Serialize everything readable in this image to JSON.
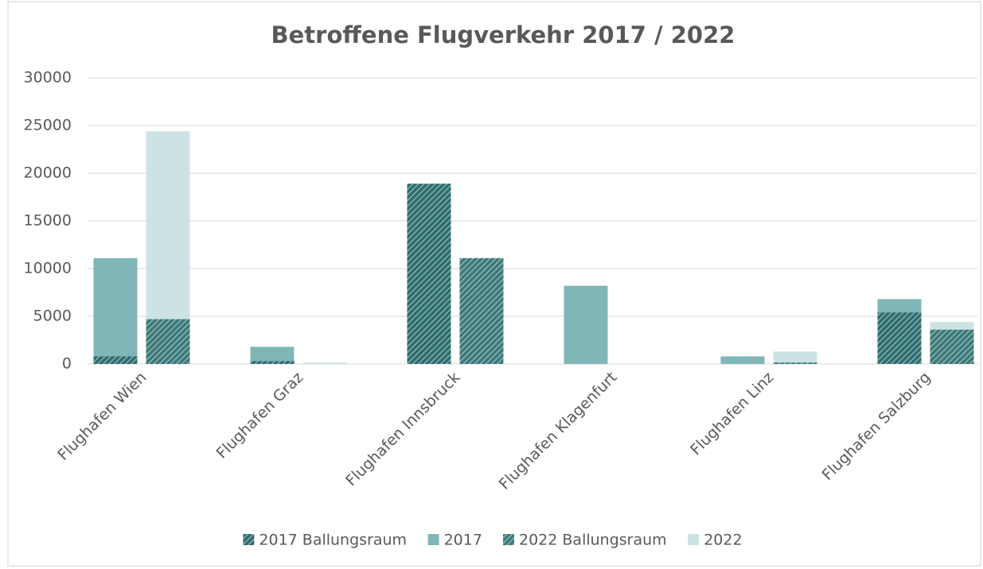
{
  "chart_data": {
    "type": "bar",
    "title": "Betroffene Flugverkehr 2017 / 2022",
    "categories": [
      "Flughafen Wien",
      "Flughafen Graz",
      "Flughafen Innsbruck",
      "Flughafen Klagenfurt",
      "Flughafen Linz",
      "Flughafen Salzburg"
    ],
    "series": [
      {
        "name": "2017 Ballungsraum",
        "color": "#2f6e6e",
        "hatch": true,
        "values": [
          800,
          300,
          18900,
          0,
          0,
          5400
        ]
      },
      {
        "name": "2017",
        "color": "#80b6b6",
        "hatch": false,
        "values": [
          11100,
          1800,
          18900,
          8200,
          800,
          6800
        ]
      },
      {
        "name": "2022 Ballungsraum",
        "color": "#3d7a7a",
        "hatch": true,
        "values": [
          4700,
          0,
          11100,
          0,
          150,
          3600
        ]
      },
      {
        "name": "2022",
        "color": "#cde3e3",
        "hatch": false,
        "values": [
          24400,
          150,
          11100,
          0,
          1300,
          4400
        ]
      }
    ],
    "ylim": [
      0,
      30000
    ],
    "yticks": [
      0,
      5000,
      10000,
      15000,
      20000,
      25000,
      30000
    ],
    "grid": true,
    "legend": "bottom"
  }
}
